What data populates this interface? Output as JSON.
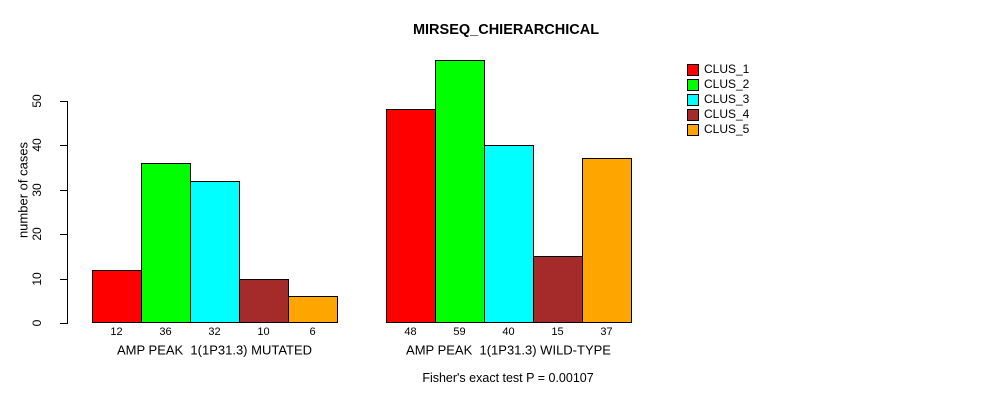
{
  "chart_data": {
    "type": "bar",
    "title": "MIRSEQ_CHIERARCHICAL",
    "ylabel": "number of cases",
    "xlabel": "",
    "ylim": [
      0,
      59
    ],
    "yticks": [
      0,
      10,
      20,
      30,
      40,
      50
    ],
    "grid": false,
    "bar_value_labels": true,
    "legend_position": "right-outside",
    "series": [
      {
        "name": "CLUS_1",
        "color": "#FF0000"
      },
      {
        "name": "CLUS_2",
        "color": "#00FF00"
      },
      {
        "name": "CLUS_3",
        "color": "#00FFFF"
      },
      {
        "name": "CLUS_4",
        "color": "#A52A2A"
      },
      {
        "name": "CLUS_5",
        "color": "#FFA500"
      }
    ],
    "groups": [
      {
        "label": "AMP PEAK  1(1P31.3) MUTATED",
        "values": [
          12,
          36,
          32,
          10,
          6
        ]
      },
      {
        "label": "AMP PEAK  1(1P31.3) WILD-TYPE",
        "values": [
          48,
          59,
          40,
          15,
          37
        ]
      }
    ],
    "annotation": "Fisher's exact test P = 0.00107"
  }
}
